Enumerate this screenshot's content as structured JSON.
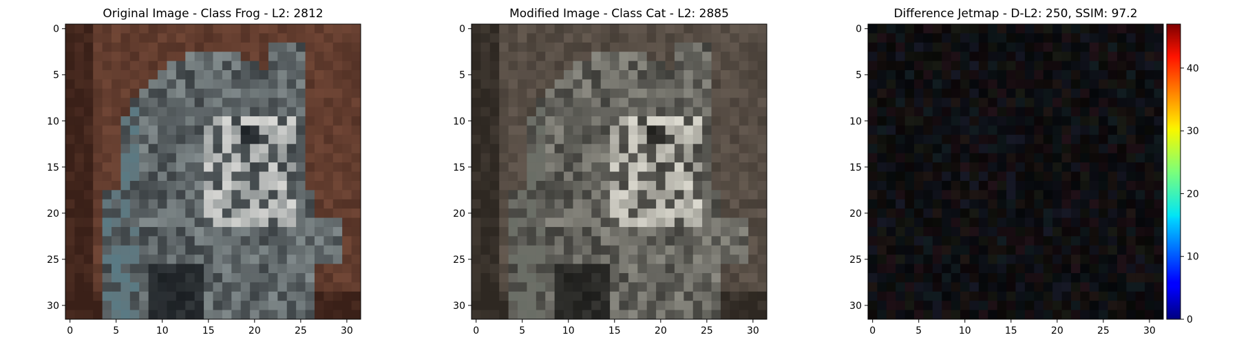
{
  "chart_data": [
    {
      "type": "heatmap",
      "title": "Original Image - Class Frog - L2: 2812",
      "title_color": "#ff0000",
      "x_ticks": [
        0,
        5,
        10,
        15,
        20,
        25,
        30
      ],
      "y_ticks": [
        0,
        5,
        10,
        15,
        20,
        25,
        30
      ],
      "grid_size": 32,
      "description": "32x32 low-resolution image of a gray tabby cat on a brown background",
      "palette": {
        "background": "#7a4d3b",
        "background_dark": "#3a2018",
        "subject": "#6a7274",
        "subject_light": "#d9d9d6",
        "subject_dark": "#1a1e22",
        "accent": "#5a7a84"
      }
    },
    {
      "type": "heatmap",
      "title": "Modified Image - Class Cat - L2: 2885",
      "title_color": "#000000",
      "x_ticks": [
        0,
        5,
        10,
        15,
        20,
        25,
        30
      ],
      "y_ticks": [
        0,
        5,
        10,
        15,
        20,
        25,
        30
      ],
      "grid_size": 32,
      "description": "Same cat image with desaturated, grayish-brown tones",
      "palette": {
        "background": "#6e6258",
        "background_dark": "#2e2822",
        "subject": "#72716a",
        "subject_light": "#dcdad0",
        "subject_dark": "#1c1c1a",
        "accent": "#6a6e66"
      }
    },
    {
      "type": "heatmap",
      "title": "Difference Jetmap - D-L2: 250, SSIM: 97.2",
      "title_color": "#000000",
      "x_ticks": [
        0,
        5,
        10,
        15,
        20,
        25,
        30
      ],
      "y_ticks": [
        0,
        5,
        10,
        15,
        20,
        25,
        30
      ],
      "grid_size": 32,
      "colorbar": {
        "colormap": "jet",
        "ticks": [
          0,
          10,
          20,
          30,
          40
        ],
        "max": 47
      },
      "description": "Near-black difference map with faint colored tints"
    }
  ]
}
